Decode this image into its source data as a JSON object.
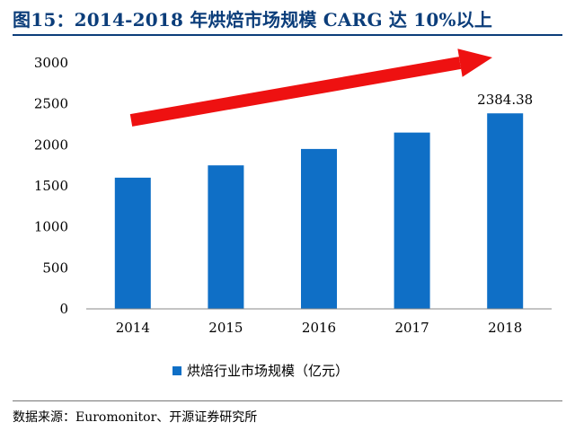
{
  "figure_title": "图15：2014-2018 年烘焙市场规模 CARG 达 10%以上",
  "source_text": "数据来源：Euromonitor、开源证券研究所",
  "colors": {
    "bar": "#0f6fc6",
    "arrow": "#ee1111",
    "title": "#0b3d7a",
    "axis": "#888888"
  },
  "chart_data": {
    "type": "bar",
    "title": "",
    "categories": [
      "2014",
      "2015",
      "2016",
      "2017",
      "2018"
    ],
    "series": [
      {
        "name": "烘焙行业市场规模（亿元）",
        "values": [
          1600,
          1750,
          1950,
          2150,
          2384.38
        ]
      }
    ],
    "data_labels": [
      {
        "category": "2018",
        "text": "2384.38"
      }
    ],
    "xlabel": "",
    "ylabel": "",
    "ylim": [
      0,
      3000
    ],
    "yticks": [
      0,
      500,
      1000,
      1500,
      2000,
      2500,
      3000
    ],
    "grid": false,
    "legend_position": "bottom",
    "annotations": [
      {
        "type": "trend-arrow",
        "direction": "up-right",
        "color": "#ee1111"
      }
    ]
  }
}
